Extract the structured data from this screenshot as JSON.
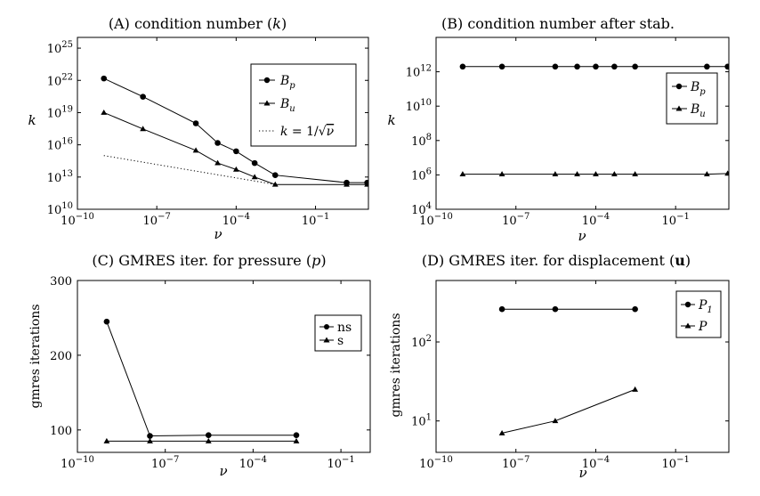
{
  "chart_data": [
    {
      "panel": "A",
      "type": "line",
      "title": "(A) condition number (k)",
      "xscale": "log",
      "yscale": "log",
      "xlabel": "ν",
      "ylabel": "k",
      "xlim": [
        1e-10,
        10
      ],
      "ylim": [
        10000000000.0,
        1e+26
      ],
      "xticks": [
        -10,
        -7,
        -4,
        -1
      ],
      "yticks": [
        10,
        13,
        16,
        19,
        22,
        25
      ],
      "legend_position": "top-right",
      "series": [
        {
          "name": "Bp",
          "marker": "circle",
          "line": "solid",
          "x": [
            1e-09,
            3e-08,
            3e-06,
            2e-05,
            0.0001,
            0.0005,
            0.003,
            1.5,
            9
          ],
          "y": [
            1.5e+22,
            3e+20,
            1e+18,
            1.5e+16,
            2500000000000000.0,
            200000000000000.0,
            15000000000000.0,
            3000000000000.0,
            3000000000000.0
          ]
        },
        {
          "name": "Bu",
          "marker": "triangle",
          "line": "solid",
          "x": [
            1e-09,
            3e-08,
            3e-06,
            2e-05,
            0.0001,
            0.0005,
            0.003,
            1.5,
            9
          ],
          "y": [
            1e+19,
            3e+17,
            3000000000000000.0,
            200000000000000.0,
            50000000000000.0,
            10000000000000.0,
            2000000000000.0,
            2000000000000.0,
            2000000000000.0
          ]
        },
        {
          "name": "k = 1/√ν",
          "marker": "none",
          "line": "dotted",
          "x": [
            1e-09,
            0.003
          ],
          "y": [
            1000000000000000.0,
            2000000000000.0
          ]
        }
      ]
    },
    {
      "panel": "B",
      "type": "line",
      "title": "(B) condition number after stab.",
      "xscale": "log",
      "yscale": "log",
      "xlabel": "ν",
      "ylabel": "k",
      "xlim": [
        1e-10,
        10
      ],
      "ylim": [
        10000.0,
        100000000000000.0
      ],
      "xticks": [
        -10,
        -7,
        -4,
        -1
      ],
      "yticks": [
        4,
        6,
        8,
        10,
        12
      ],
      "legend_position": "right",
      "series": [
        {
          "name": "Bp",
          "marker": "circle",
          "line": "solid",
          "x": [
            1e-09,
            3e-08,
            3e-06,
            2e-05,
            0.0001,
            0.0005,
            0.003,
            1.5,
            9
          ],
          "y": [
            2000000000000.0,
            2000000000000.0,
            2000000000000.0,
            2000000000000.0,
            2000000000000.0,
            2000000000000.0,
            2000000000000.0,
            2000000000000.0,
            2000000000000.0
          ]
        },
        {
          "name": "Bu",
          "marker": "triangle",
          "line": "solid",
          "x": [
            1e-09,
            3e-08,
            3e-06,
            2e-05,
            0.0001,
            0.0005,
            0.003,
            1.5,
            9
          ],
          "y": [
            1100000.0,
            1100000.0,
            1100000.0,
            1100000.0,
            1100000.0,
            1100000.0,
            1100000.0,
            1100000.0,
            1200000.0
          ]
        }
      ]
    },
    {
      "panel": "C",
      "type": "line",
      "title": "(C) GMRES iter. for pressure (p)",
      "xscale": "log",
      "yscale": "linear",
      "xlabel": "ν",
      "ylabel": "gmres iterations",
      "xlim": [
        1e-10,
        1
      ],
      "ylim": [
        70,
        300
      ],
      "xticks": [
        -10,
        -7,
        -4,
        -1
      ],
      "yticks": [
        100,
        200,
        300
      ],
      "legend_position": "right",
      "series": [
        {
          "name": "ns",
          "marker": "circle",
          "line": "solid",
          "x": [
            1e-09,
            3e-08,
            3e-06,
            0.003
          ],
          "y": [
            245,
            92,
            93,
            93
          ]
        },
        {
          "name": "s",
          "marker": "triangle",
          "line": "solid",
          "x": [
            1e-09,
            3e-08,
            3e-06,
            0.003
          ],
          "y": [
            85,
            85,
            85,
            85
          ]
        }
      ]
    },
    {
      "panel": "D",
      "type": "line",
      "title": "(D) GMRES iter. for displacement (u)",
      "xscale": "log",
      "yscale": "log",
      "xlabel": "ν",
      "ylabel": "gmres iterations",
      "xlim": [
        1e-10,
        10
      ],
      "ylim": [
        4,
        600
      ],
      "xticks": [
        -10,
        -7,
        -4,
        -1
      ],
      "yticks": [
        1,
        2
      ],
      "legend_position": "top-right",
      "series": [
        {
          "name": "P1",
          "marker": "circle",
          "line": "solid",
          "x": [
            3e-08,
            3e-06,
            0.003
          ],
          "y": [
            260,
            260,
            260
          ]
        },
        {
          "name": "P",
          "marker": "triangle",
          "line": "solid",
          "x": [
            3e-08,
            3e-06,
            0.003
          ],
          "y": [
            7,
            10,
            25
          ]
        }
      ]
    }
  ],
  "titles": {
    "A": {
      "prefix": "(A) condition number (",
      "var": "k",
      "suffix": ")"
    },
    "B": {
      "text": "(B) condition number after stab."
    },
    "C": {
      "prefix": "(C) GMRES iter. for pressure (",
      "var": "p",
      "suffix": ")"
    },
    "D": {
      "prefix": "(D) GMRES iter. for displacement (",
      "var": "u",
      "suffix": ")"
    }
  },
  "labels": {
    "nu": "ν",
    "k": "k",
    "gmres": "gmres iterations"
  },
  "legends": {
    "A": [
      {
        "base": "B",
        "sub": "p"
      },
      {
        "base": "B",
        "sub": "u"
      },
      {
        "pre": "k",
        "mid": " = 1/√",
        "post": "ν"
      }
    ],
    "B": [
      {
        "base": "B",
        "sub": "p"
      },
      {
        "base": "B",
        "sub": "u"
      }
    ],
    "C": [
      {
        "text": "ns"
      },
      {
        "text": "s"
      }
    ],
    "D": [
      {
        "base": "P",
        "sub": "1"
      },
      {
        "base": "P",
        "sub": ""
      }
    ]
  },
  "tick_labels": {
    "base": "10",
    "dash": "−"
  }
}
